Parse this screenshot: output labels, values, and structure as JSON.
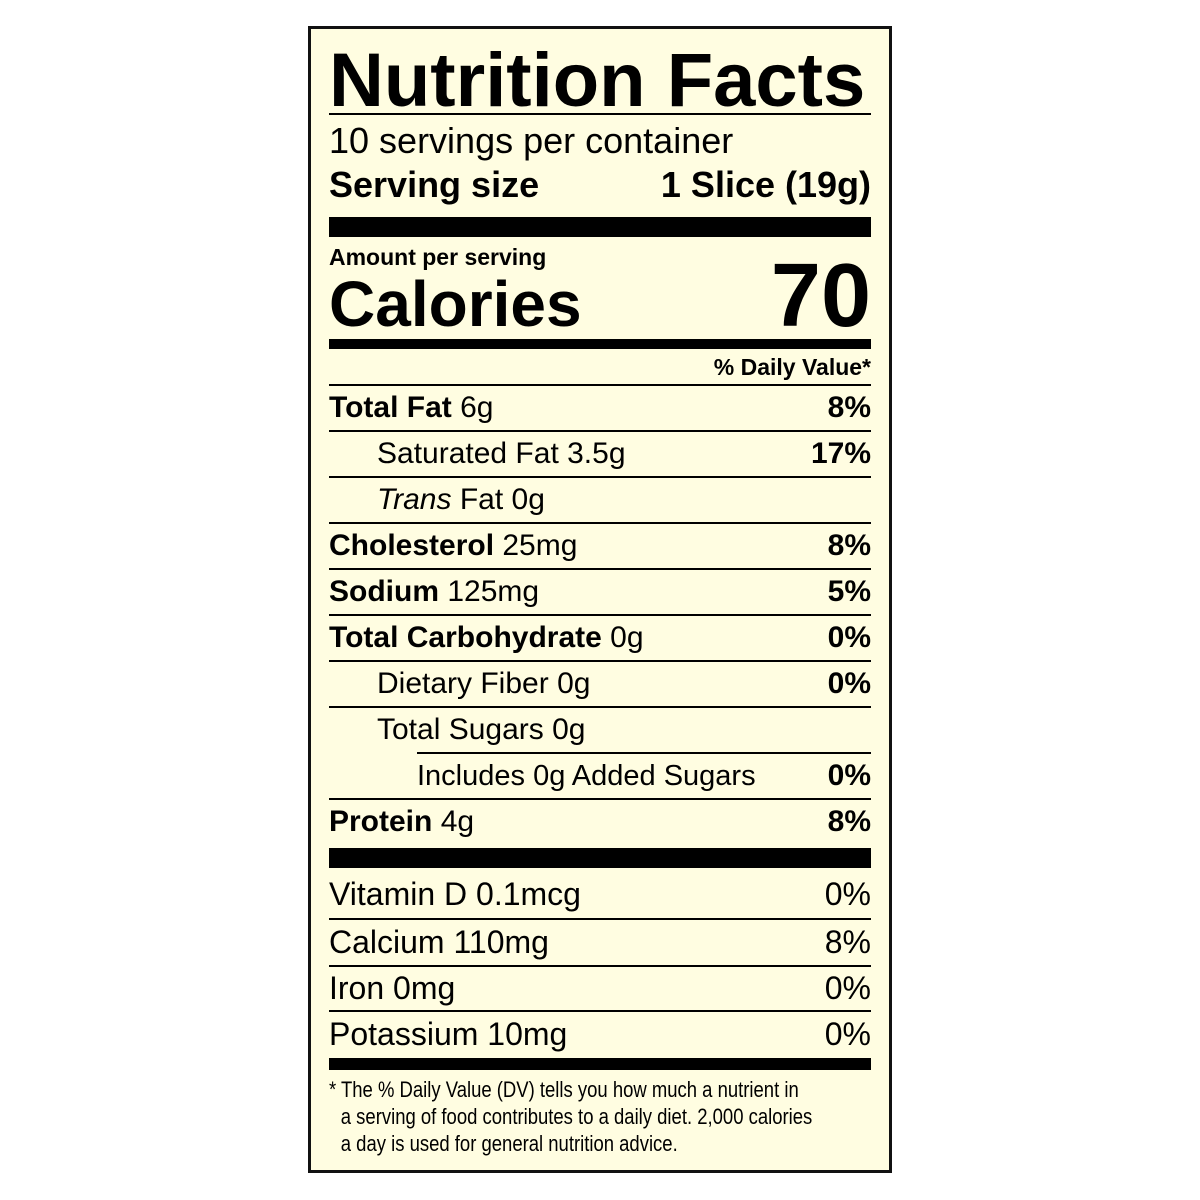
{
  "colors": {
    "background": "#FFFDE1",
    "ink": "#000000"
  },
  "title": "Nutrition Facts",
  "servings_per_container": "10 servings per container",
  "serving_size": {
    "label": "Serving size",
    "value": "1 Slice (19g)"
  },
  "amount_per_serving": "Amount per serving",
  "calories": {
    "label": "Calories",
    "value": "70"
  },
  "daily_value_header": "% Daily Value*",
  "nutrients": [
    {
      "name": "Total Fat",
      "amount": "6g",
      "dv": "8%"
    },
    {
      "name": "Saturated Fat",
      "amount": "3.5g",
      "dv": "17%"
    },
    {
      "name_italic": "Trans",
      "name": "Fat",
      "amount": "0g",
      "dv": ""
    },
    {
      "name": "Cholesterol",
      "amount": "25mg",
      "dv": "8%"
    },
    {
      "name": "Sodium",
      "amount": "125mg",
      "dv": "5%"
    },
    {
      "name": "Total Carbohydrate",
      "amount": "0g",
      "dv": "0%"
    },
    {
      "name": "Dietary Fiber",
      "amount": "0g",
      "dv": "0%"
    },
    {
      "name": "Total Sugars",
      "amount": "0g",
      "dv": ""
    },
    {
      "name": "Includes 0g Added Sugars",
      "amount": "",
      "dv": "0%"
    },
    {
      "name": "Protein",
      "amount": "4g",
      "dv": "8%"
    }
  ],
  "vitamins": [
    {
      "name": "Vitamin D 0.1mcg",
      "dv": "0%"
    },
    {
      "name": "Calcium 110mg",
      "dv": "8%"
    },
    {
      "name": "Iron 0mg",
      "dv": "0%"
    },
    {
      "name": "Potassium 10mg",
      "dv": "0%"
    }
  ],
  "footnote": [
    "* The % Daily Value (DV) tells you how much a nutrient in",
    "a serving of food contributes to a daily diet. 2,000 calories",
    "a day is used for general nutrition advice."
  ]
}
